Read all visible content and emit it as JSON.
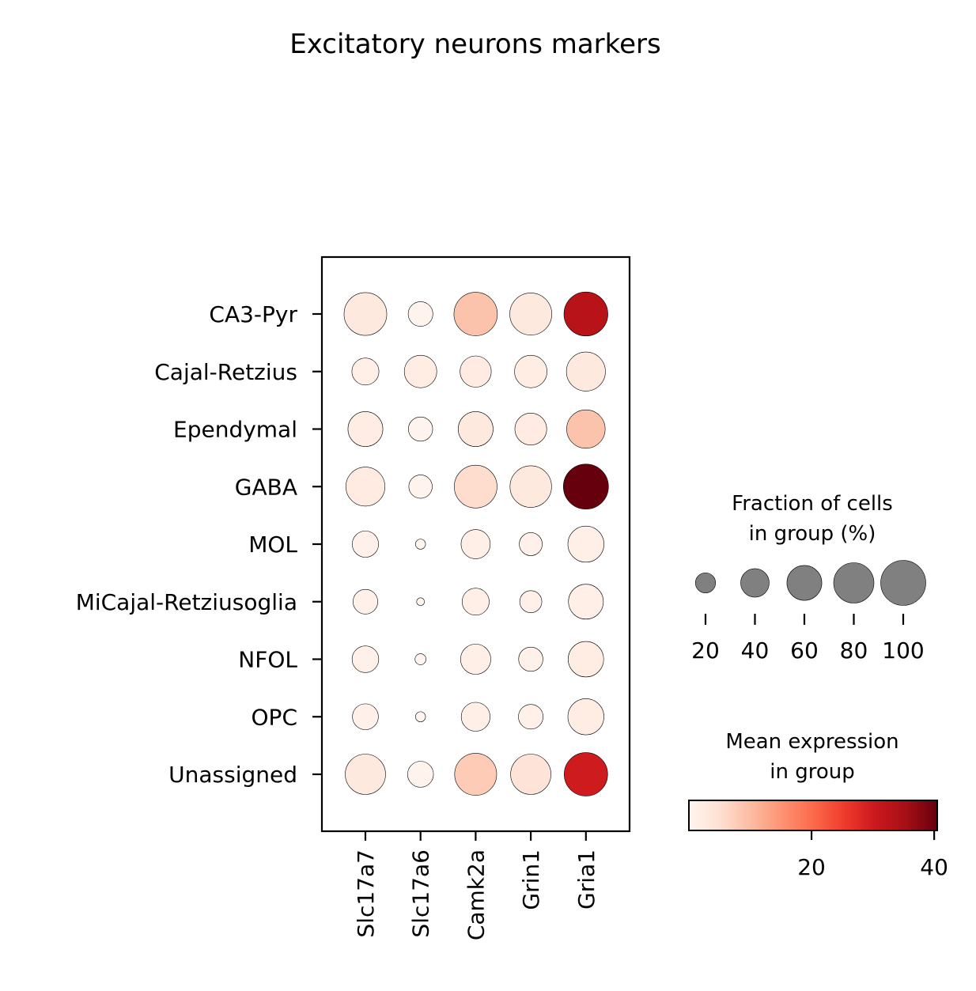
{
  "chart_data": {
    "type": "dotplot",
    "title": "Excitatory neurons markers",
    "genes": [
      "Slc17a7",
      "Slc17a6",
      "Camk2a",
      "Grin1",
      "Gria1"
    ],
    "groups": [
      "CA3-Pyr",
      "Cajal-Retzius",
      "Ependymal",
      "GABA",
      "MOL",
      "MiCajal-Retziusoglia",
      "NFOL",
      "OPC",
      "Unassigned"
    ],
    "fraction_pct": [
      [
        90,
        30,
        93,
        87,
        95
      ],
      [
        36,
        52,
        48,
        52,
        75
      ],
      [
        60,
        29,
        60,
        50,
        73
      ],
      [
        75,
        27,
        90,
        85,
        100
      ],
      [
        34,
        5,
        42,
        26,
        64
      ],
      [
        30,
        3,
        36,
        24,
        60
      ],
      [
        35,
        6,
        45,
        29,
        62
      ],
      [
        33,
        5,
        41,
        30,
        64
      ],
      [
        80,
        33,
        87,
        80,
        93
      ]
    ],
    "mean_expression": [
      [
        3,
        0.5,
        9,
        3,
        33
      ],
      [
        1.5,
        2,
        2.5,
        2,
        3
      ],
      [
        2,
        0.5,
        3,
        2.5,
        9
      ],
      [
        2.5,
        0.5,
        5.5,
        3,
        41
      ],
      [
        1,
        0.2,
        1.5,
        1,
        1.5
      ],
      [
        1,
        0.1,
        1.5,
        1,
        1.5
      ],
      [
        1,
        0.2,
        1.5,
        1,
        2
      ],
      [
        1,
        0.2,
        1.5,
        1,
        2
      ],
      [
        3,
        0.5,
        8,
        4,
        30
      ]
    ],
    "size_legend": {
      "title_line1": "Fraction of cells",
      "title_line2": "in group (%)",
      "values": [
        20,
        40,
        60,
        80,
        100
      ],
      "labels": [
        "20",
        "40",
        "60",
        "80",
        "100"
      ],
      "dot_color": "#808080"
    },
    "color_legend": {
      "title_line1": "Mean expression",
      "title_line2": "in group",
      "range": [
        0,
        40.5
      ],
      "ticks": [
        20,
        40
      ],
      "tick_labels": [
        "20",
        "40"
      ],
      "colormap": "Reds",
      "stops": [
        "#fff5f0",
        "#fee0d2",
        "#fcbba1",
        "#fc9272",
        "#fb6a4a",
        "#ef3b2c",
        "#cb181d",
        "#a50f15",
        "#67000d"
      ]
    }
  }
}
